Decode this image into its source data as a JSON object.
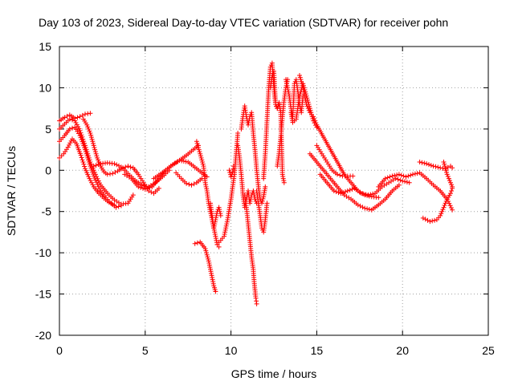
{
  "chart_data": {
    "type": "scatter",
    "title": "Day 103 of 2023, Sidereal Day-to-day VTEC variation (SDTVAR) for receiver pohn",
    "xlabel": "GPS time / hours",
    "ylabel": "SDTVAR / TECUs",
    "xlim": [
      0,
      25
    ],
    "ylim": [
      -20,
      15
    ],
    "xticks": [
      "0",
      "5",
      "10",
      "15",
      "20",
      "25"
    ],
    "yticks": [
      "15",
      "10",
      "5",
      "0",
      "-5",
      "-10",
      "-15",
      "-20"
    ],
    "grid": true,
    "marker": "+",
    "color": "#ff0000",
    "series": [
      {
        "name": "arc-1",
        "x": [
          0.0,
          0.3,
          0.6,
          0.9,
          1.2,
          1.5,
          1.8,
          2.1,
          2.4,
          2.8,
          3.2,
          3.6,
          4.0,
          4.3
        ],
        "y": [
          5.0,
          5.6,
          6.2,
          6.0,
          4.8,
          3.0,
          1.0,
          -0.5,
          -1.8,
          -2.8,
          -3.6,
          -4.1,
          -4.0,
          -3.0
        ]
      },
      {
        "name": "arc-2",
        "x": [
          0.0,
          0.3,
          0.6,
          0.9,
          1.2,
          1.5,
          1.8,
          2.1,
          2.4,
          2.7,
          3.0,
          3.3,
          3.6
        ],
        "y": [
          3.5,
          4.2,
          5.0,
          5.2,
          4.2,
          2.5,
          0.5,
          -1.2,
          -2.5,
          -3.3,
          -4.0,
          -4.5,
          -4.3
        ]
      },
      {
        "name": "arc-3",
        "x": [
          0.0,
          0.25,
          0.5,
          0.75,
          1.0,
          1.25,
          1.5,
          1.75,
          2.0,
          2.3,
          2.6,
          2.9,
          3.2
        ],
        "y": [
          1.5,
          2.0,
          2.8,
          3.8,
          3.2,
          1.8,
          0.2,
          -1.0,
          -2.0,
          -2.8,
          -3.4,
          -3.9,
          -4.2
        ]
      },
      {
        "name": "arc-4",
        "x": [
          0.0,
          0.3,
          0.6,
          0.9,
          1.2,
          1.5,
          1.8
        ],
        "y": [
          6.0,
          6.4,
          6.7,
          6.3,
          6.5,
          6.8,
          6.9
        ]
      },
      {
        "name": "arc-5",
        "x": [
          1.4,
          1.6,
          1.8,
          2.0,
          2.2,
          2.4,
          2.6,
          2.8,
          3.1,
          3.4,
          3.7,
          4.0,
          4.3,
          4.6,
          4.9,
          5.2,
          5.5,
          5.8
        ],
        "y": [
          6.2,
          5.5,
          4.5,
          3.0,
          1.5,
          0.5,
          -0.2,
          -0.5,
          -0.4,
          -0.1,
          0.3,
          0.5,
          0.3,
          -0.5,
          -1.5,
          -2.5,
          -2.8,
          -2.2
        ]
      },
      {
        "name": "arc-6",
        "x": [
          2.0,
          2.4,
          2.8,
          3.2,
          3.6,
          4.0,
          4.4,
          4.8,
          5.2,
          5.6,
          6.0,
          6.4
        ],
        "y": [
          0.5,
          0.8,
          0.9,
          0.8,
          0.4,
          -0.4,
          -1.2,
          -1.8,
          -2.0,
          -1.5,
          -0.8,
          0.0
        ]
      },
      {
        "name": "arc-7",
        "x": [
          3.8,
          4.2,
          4.6,
          5.0,
          5.4,
          5.8,
          6.2,
          6.6,
          7.0,
          7.4,
          7.8,
          8.1
        ],
        "y": [
          -0.5,
          -1.0,
          -2.0,
          -2.3,
          -2.0,
          -1.0,
          0.0,
          0.7,
          1.2,
          1.8,
          2.5,
          3.0
        ]
      },
      {
        "name": "arc-8",
        "x": [
          5.5,
          6.0,
          6.5,
          7.0,
          7.5,
          8.0,
          8.4,
          8.6
        ],
        "y": [
          -1.0,
          -0.3,
          0.5,
          1.2,
          1.0,
          0.2,
          -0.5,
          -0.8
        ]
      },
      {
        "name": "arc-9",
        "x": [
          6.8,
          7.1,
          7.4,
          7.7,
          8.0,
          8.3
        ],
        "y": [
          -0.3,
          -1.0,
          -1.6,
          -1.8,
          -1.5,
          -1.0
        ]
      },
      {
        "name": "arc-10",
        "x": [
          8.0,
          8.2,
          8.4,
          8.5,
          8.6,
          8.7,
          8.8,
          8.9,
          9.0,
          9.1,
          9.2,
          9.3
        ],
        "y": [
          3.5,
          2.0,
          0.5,
          -1.5,
          -2.5,
          -4.0,
          -5.0,
          -6.0,
          -7.0,
          -8.0,
          -9.0,
          -9.3
        ]
      },
      {
        "name": "arc-11",
        "x": [
          7.9,
          8.2,
          8.5,
          8.7,
          8.9,
          9.0,
          9.1
        ],
        "y": [
          -8.9,
          -8.7,
          -9.5,
          -11.0,
          -13.0,
          -14.0,
          -14.7
        ]
      },
      {
        "name": "arc-12",
        "x": [
          8.8,
          8.9,
          9.0,
          9.1,
          9.2,
          9.3,
          9.4
        ],
        "y": [
          -4.0,
          -5.5,
          -7.0,
          -6.0,
          -5.0,
          -4.5,
          -5.5
        ]
      },
      {
        "name": "arc-13",
        "x": [
          9.2,
          9.4,
          9.6,
          9.8,
          10.0,
          10.2,
          10.4
        ],
        "y": [
          -9.0,
          -8.5,
          -8.0,
          -6.0,
          -3.5,
          -0.5,
          4.5
        ]
      },
      {
        "name": "arc-14",
        "x": [
          9.9,
          10.0,
          10.1,
          10.15
        ],
        "y": [
          0.0,
          -0.8,
          -0.2,
          0.5
        ]
      },
      {
        "name": "arc-15",
        "x": [
          10.4,
          10.5,
          10.6,
          10.7,
          10.8,
          10.9,
          11.0,
          11.1,
          11.2,
          11.3,
          11.4,
          11.5
        ],
        "y": [
          3.0,
          1.5,
          -0.5,
          -3.0,
          -4.5,
          -3.5,
          -2.5,
          -4.0,
          -3.0,
          -2.5,
          -3.5,
          -4.0
        ]
      },
      {
        "name": "arc-16",
        "x": [
          10.6,
          10.7,
          10.8,
          10.9,
          11.0,
          11.1,
          11.2,
          11.3,
          11.4,
          11.5,
          11.6,
          11.7,
          11.8,
          11.9,
          12.0
        ],
        "y": [
          5.0,
          6.5,
          7.8,
          6.5,
          5.5,
          6.5,
          7.0,
          4.5,
          2.5,
          0.0,
          -2.0,
          -3.5,
          -4.0,
          -3.2,
          -2.0
        ]
      },
      {
        "name": "arc-17",
        "x": [
          10.8,
          10.9,
          11.0,
          11.1,
          11.2,
          11.3,
          11.35,
          11.4,
          11.45,
          11.5
        ],
        "y": [
          -3.0,
          -4.5,
          -6.5,
          -8.5,
          -10.5,
          -12.0,
          -13.5,
          -14.5,
          -15.5,
          -16.2
        ]
      },
      {
        "name": "arc-18",
        "x": [
          11.5,
          11.6,
          11.7,
          11.8,
          11.9,
          12.0,
          12.1
        ],
        "y": [
          -2.5,
          -4.0,
          -5.5,
          -7.0,
          -7.5,
          -6.0,
          -4.0
        ]
      },
      {
        "name": "arc-19",
        "x": [
          11.9,
          12.0,
          12.1,
          12.2,
          12.3,
          12.4,
          12.5,
          12.6,
          12.7,
          12.8
        ],
        "y": [
          -1.0,
          2.0,
          6.0,
          10.0,
          12.5,
          13.0,
          10.0,
          8.0,
          7.5,
          8.0
        ]
      },
      {
        "name": "arc-20",
        "x": [
          12.3,
          12.4,
          12.5,
          12.6,
          12.7,
          12.8,
          12.9,
          13.0,
          13.1
        ],
        "y": [
          10.0,
          11.5,
          12.0,
          8.0,
          7.5,
          8.2,
          7.0,
          -0.5,
          -1.5
        ]
      },
      {
        "name": "arc-21",
        "x": [
          12.7,
          12.8,
          12.9,
          13.0,
          13.1,
          13.2,
          13.3
        ],
        "y": [
          0.5,
          2.0,
          4.0,
          6.5,
          8.5,
          10.0,
          11.0
        ]
      },
      {
        "name": "arc-22",
        "x": [
          13.2,
          13.3,
          13.4,
          13.5,
          13.6,
          13.7,
          13.8,
          13.9,
          14.0,
          14.1,
          14.2
        ],
        "y": [
          11.0,
          10.0,
          9.0,
          7.5,
          6.5,
          10.5,
          11.0,
          9.5,
          8.0,
          7.0,
          9.0
        ]
      },
      {
        "name": "arc-23",
        "x": [
          13.5,
          13.6,
          13.8,
          14.0,
          14.2,
          14.4,
          14.6,
          14.8,
          15.0
        ],
        "y": [
          7.0,
          5.8,
          6.2,
          9.0,
          10.5,
          9.0,
          7.5,
          6.0,
          5.2
        ]
      },
      {
        "name": "arc-24",
        "x": [
          14.0,
          14.2,
          14.4,
          14.6,
          14.8,
          15.0,
          15.4,
          15.8,
          16.2,
          16.6,
          17.0,
          17.4,
          17.8,
          18.2,
          18.6
        ],
        "y": [
          11.5,
          10.0,
          8.0,
          7.0,
          6.5,
          5.5,
          4.0,
          2.5,
          1.0,
          -0.5,
          -1.5,
          -2.5,
          -3.0,
          -3.2,
          -3.3
        ]
      },
      {
        "name": "arc-25",
        "x": [
          15.0,
          15.3,
          15.6,
          15.9,
          16.2,
          16.5,
          16.8,
          17.1
        ],
        "y": [
          3.0,
          2.0,
          1.0,
          0.0,
          -0.5,
          -0.7,
          -0.7,
          -0.7
        ]
      },
      {
        "name": "arc-26",
        "x": [
          14.6,
          15.0,
          15.4,
          15.8,
          16.2,
          16.6,
          17.0,
          17.4,
          17.8,
          18.2,
          18.6,
          19.0,
          19.4,
          19.8
        ],
        "y": [
          2.0,
          1.0,
          0.0,
          -1.0,
          -2.0,
          -3.0,
          -3.5,
          -4.2,
          -4.6,
          -4.8,
          -4.2,
          -3.5,
          -2.5,
          -1.8
        ]
      },
      {
        "name": "arc-27",
        "x": [
          15.2,
          15.6,
          16.0,
          16.4,
          16.8,
          17.2,
          17.6,
          18.0,
          18.4,
          18.8,
          19.2,
          19.6,
          20.0,
          20.4
        ],
        "y": [
          -0.5,
          -1.5,
          -2.5,
          -2.8,
          -2.5,
          -2.2,
          -2.8,
          -3.0,
          -2.8,
          -2.0,
          -1.5,
          -1.0,
          -1.3,
          -1.5
        ]
      },
      {
        "name": "arc-28",
        "x": [
          18.6,
          19.0,
          19.4,
          19.8,
          20.2,
          20.6,
          21.0,
          21.4,
          21.8,
          22.2,
          22.6,
          22.9
        ],
        "y": [
          -2.0,
          -1.0,
          -0.7,
          -0.5,
          -0.8,
          -0.5,
          -0.3,
          -1.0,
          -1.8,
          -2.5,
          -3.5,
          -4.8
        ]
      },
      {
        "name": "arc-29",
        "x": [
          21.0,
          21.4,
          21.8,
          22.2,
          22.5,
          22.8,
          22.9
        ],
        "y": [
          1.0,
          0.8,
          0.5,
          0.3,
          0.2,
          0.5,
          0.3
        ]
      },
      {
        "name": "arc-30",
        "x": [
          21.2,
          21.6,
          22.0,
          22.2,
          22.4,
          22.6,
          22.8,
          22.9
        ],
        "y": [
          -5.8,
          -6.2,
          -6.0,
          -5.5,
          -4.5,
          -3.5,
          -2.8,
          -2.2
        ]
      },
      {
        "name": "arc-31",
        "x": [
          22.4,
          22.6,
          22.8,
          22.9
        ],
        "y": [
          1.0,
          -0.5,
          -1.5,
          -2.0
        ]
      }
    ]
  }
}
